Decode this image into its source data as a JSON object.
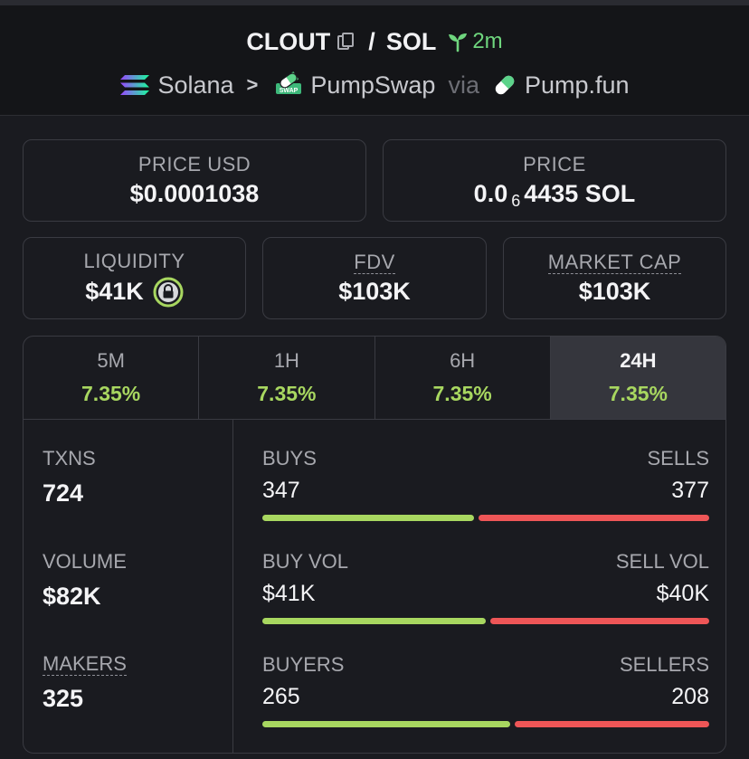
{
  "header": {
    "token": "CLOUT",
    "slash": "/",
    "quote": "SOL",
    "age": "2m",
    "chain": "Solana",
    "dex": "PumpSwap",
    "dex_badge": "SWAP",
    "via": "via",
    "launchpad": "Pump.fun"
  },
  "prices": {
    "usd_label": "PRICE USD",
    "usd_value": "$0.0001038",
    "native_label": "PRICE",
    "native_prefix": "0.0",
    "native_zeros": "6",
    "native_digits": "4435 SOL"
  },
  "metrics": {
    "liquidity_label": "LIQUIDITY",
    "liquidity_value": "$41K",
    "fdv_label": "FDV",
    "fdv_value": "$103K",
    "mcap_label": "MARKET CAP",
    "mcap_value": "$103K"
  },
  "tabs": [
    {
      "label": "5M",
      "change": "7.35%"
    },
    {
      "label": "1H",
      "change": "7.35%"
    },
    {
      "label": "6H",
      "change": "7.35%"
    },
    {
      "label": "24H",
      "change": "7.35%"
    }
  ],
  "stats": {
    "txns_label": "TXNS",
    "txns_value": "724",
    "volume_label": "VOLUME",
    "volume_value": "$82K",
    "makers_label": "MAKERS",
    "makers_value": "325"
  },
  "splits": [
    {
      "left_label": "BUYS",
      "right_label": "SELLS",
      "left_value": "347",
      "right_value": "377",
      "left_share": 0.479
    },
    {
      "left_label": "BUY VOL",
      "right_label": "SELL VOL",
      "left_value": "$41K",
      "right_value": "$40K",
      "left_share": 0.506
    },
    {
      "left_label": "BUYERS",
      "right_label": "SELLERS",
      "left_value": "265",
      "right_value": "208",
      "left_share": 0.56
    }
  ],
  "colors": {
    "positive": "#a8d760",
    "negative": "#ee5657",
    "age": "#6fd67e"
  }
}
